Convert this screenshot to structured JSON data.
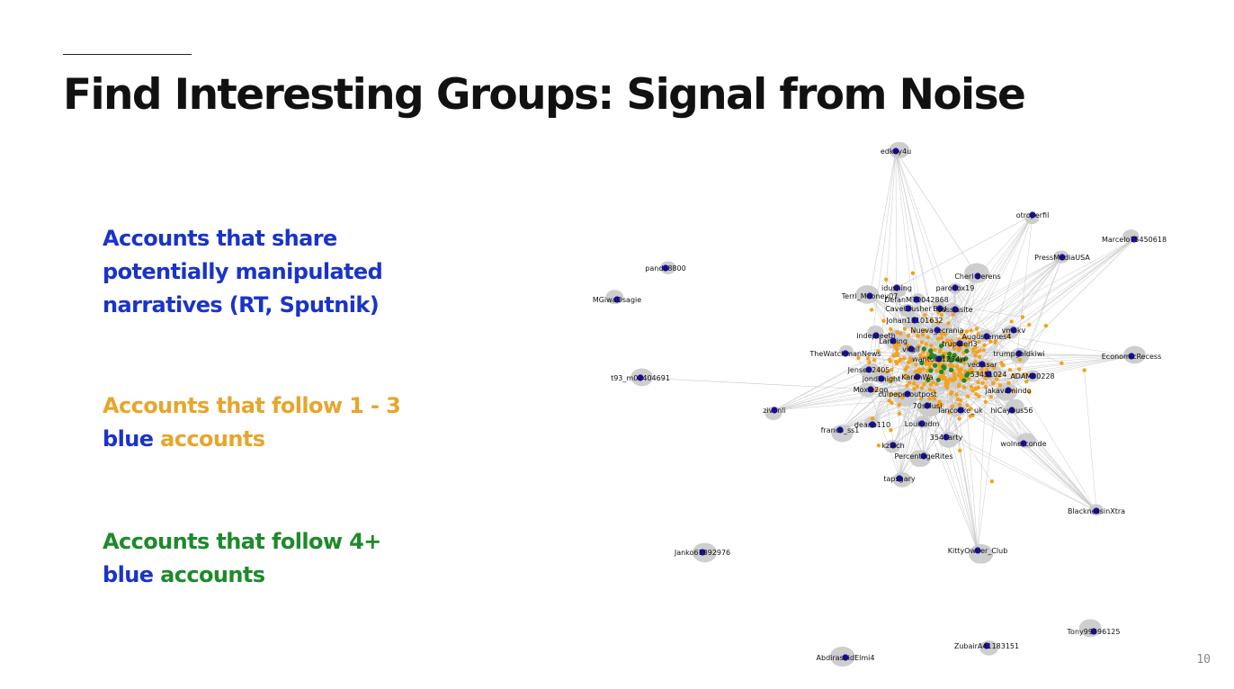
{
  "slide": {
    "title": "Find Interesting Groups: Signal from Noise",
    "page_number": "10"
  },
  "legend": {
    "blue": {
      "line1": "Accounts that share",
      "line2": "potentially manipulated",
      "line3": "narratives (RT, Sputnik)"
    },
    "orange": {
      "line1": "Accounts that follow 1 - 3",
      "line2_blue": "blue ",
      "line2_colored": "accounts"
    },
    "green": {
      "line1": "Accounts that follow 4+",
      "line2_blue": "blue ",
      "line2_colored": "accounts"
    }
  },
  "colors": {
    "blue_accounts": "#1a0fb0",
    "orange_accounts": "#f5a21a",
    "green_accounts": "#1e8a2b",
    "edges": "#c8c8c8",
    "node_halo": "#c9c9c9"
  },
  "network": {
    "blue_nodes": [
      {
        "label": "edkay4u"
      },
      {
        "label": "otroperfil"
      },
      {
        "label": "Marcelo75450618"
      },
      {
        "label": "PressMediaUSA"
      },
      {
        "label": "panda8800"
      },
      {
        "label": "Cherl Berens"
      },
      {
        "label": "MGiwaOsagie"
      },
      {
        "label": "idusning"
      },
      {
        "label": "parodox19"
      },
      {
        "label": "Terri_Mooney07"
      },
      {
        "label": "DefanM70042868"
      },
      {
        "label": "CaveCrusher"
      },
      {
        "label": "Bad"
      },
      {
        "label": "casslasite"
      },
      {
        "label": "Johan13101632"
      },
      {
        "label": "Nueva_ecrania"
      },
      {
        "label": "indepteeth"
      },
      {
        "label": "Lanning"
      },
      {
        "label": "Augustemes4"
      },
      {
        "label": "vmokv"
      },
      {
        "label": "virgil"
      },
      {
        "label": "trupalerl3"
      },
      {
        "label": "TheWatchmanNews"
      },
      {
        "label": "wantout1234w"
      },
      {
        "label": "trumpgoldkiwi"
      },
      {
        "label": "EconomicRecess"
      },
      {
        "label": "Jensen2405"
      },
      {
        "label": "vedissar"
      },
      {
        "label": "t93_m02404691"
      },
      {
        "label": "jondknight"
      },
      {
        "label": "KarenWa"
      },
      {
        "label": "53451024"
      },
      {
        "label": "ADAM00228"
      },
      {
        "label": "Moxie2go"
      },
      {
        "label": "jakavamindo"
      },
      {
        "label": "culpeperoutpost"
      },
      {
        "label": "zivonli"
      },
      {
        "label": "70sMusi"
      },
      {
        "label": "Iancooke_uk"
      },
      {
        "label": "hiCaybus56"
      },
      {
        "label": "franco_ss1"
      },
      {
        "label": "deano110"
      },
      {
        "label": "Louisedm"
      },
      {
        "label": "3541arty"
      },
      {
        "label": "kzlach"
      },
      {
        "label": "wolnerconde"
      },
      {
        "label": "PercentageRites"
      },
      {
        "label": "tapsgary"
      },
      {
        "label": "BlacknessinXtra"
      },
      {
        "label": "Janko61892976"
      },
      {
        "label": "KittyOwner_Club"
      },
      {
        "label": "Tony99596125"
      },
      {
        "label": "ZubairA41183151"
      },
      {
        "label": "AbdirashidElmi4"
      }
    ]
  }
}
